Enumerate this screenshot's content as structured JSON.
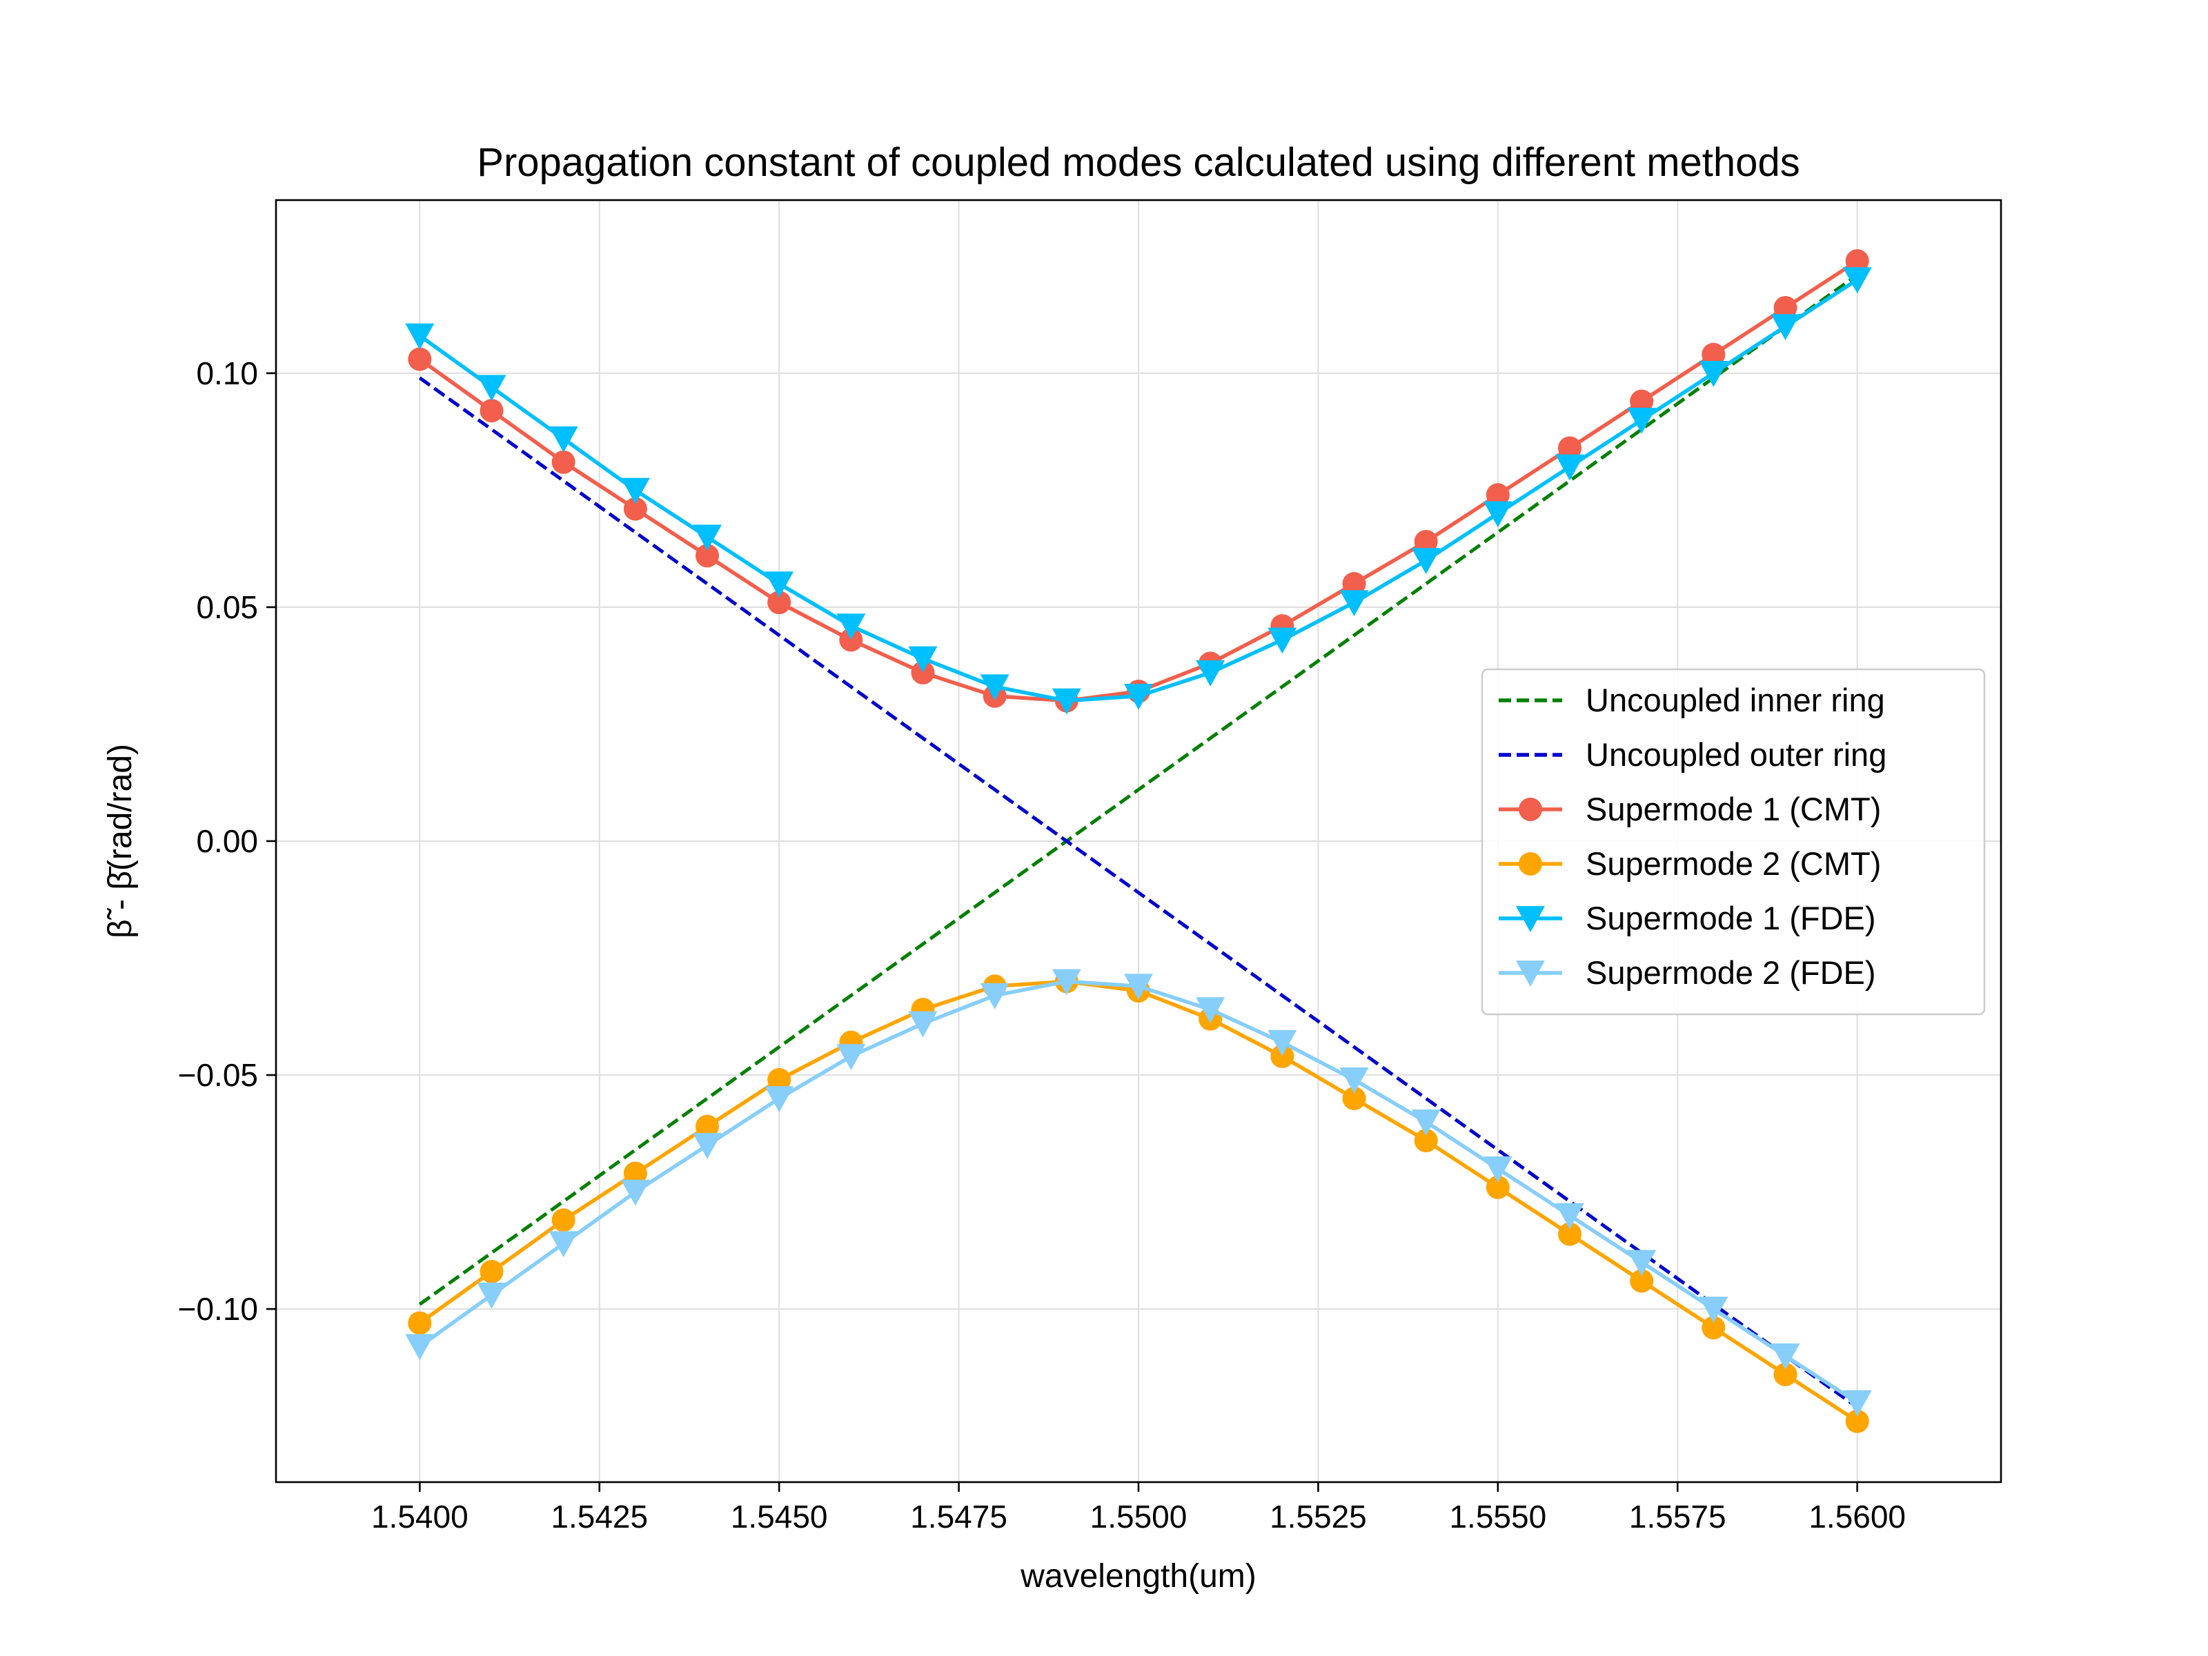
{
  "chart_data": {
    "type": "line",
    "title": "Propagation constant of coupled modes calculated using different methods",
    "xlabel": "wavelength(um)",
    "ylabel": "β̃ - β̄(rad/rad)",
    "xlim": [
      1.538,
      1.562
    ],
    "ylim": [
      -0.137,
      0.137
    ],
    "grid": true,
    "legend_position": "center-right",
    "x_ticks": [
      1.54,
      1.5425,
      1.545,
      1.5475,
      1.55,
      1.5525,
      1.555,
      1.5575,
      1.56
    ],
    "x_tick_labels": [
      "1.5400",
      "1.5425",
      "1.5450",
      "1.5475",
      "1.5500",
      "1.5525",
      "1.5550",
      "1.5575",
      "1.5600"
    ],
    "y_ticks": [
      -0.1,
      -0.05,
      0.0,
      0.05,
      0.1
    ],
    "y_tick_labels": [
      "−0.10",
      "−0.05",
      "0.00",
      "0.05",
      "0.10"
    ],
    "x": [
      1.54,
      1.541,
      1.542,
      1.543,
      1.544,
      1.545,
      1.546,
      1.547,
      1.548,
      1.549,
      1.55,
      1.551,
      1.552,
      1.553,
      1.554,
      1.555,
      1.556,
      1.557,
      1.558,
      1.559,
      1.56
    ],
    "series": [
      {
        "name": "Uncoupled inner ring",
        "color": "#008000",
        "style": "dashed",
        "marker": "none",
        "values": [
          -0.099,
          -0.088,
          -0.077,
          -0.066,
          -0.055,
          -0.044,
          -0.033,
          -0.022,
          -0.011,
          0.0,
          0.011,
          0.022,
          0.033,
          0.044,
          0.055,
          0.066,
          0.077,
          0.088,
          0.099,
          0.11,
          0.121
        ]
      },
      {
        "name": "Uncoupled outer ring",
        "color": "#0000cd",
        "style": "dashed",
        "marker": "none",
        "values": [
          0.099,
          0.088,
          0.077,
          0.066,
          0.055,
          0.044,
          0.033,
          0.022,
          0.011,
          0.0,
          -0.011,
          -0.022,
          -0.033,
          -0.044,
          -0.055,
          -0.066,
          -0.077,
          -0.088,
          -0.099,
          -0.11,
          -0.121
        ]
      },
      {
        "name": "Supermode 1 (CMT)",
        "color": "#f25f4c",
        "style": "solid",
        "marker": "circle",
        "values": [
          0.103,
          0.092,
          0.081,
          0.071,
          0.061,
          0.051,
          0.043,
          0.036,
          0.031,
          0.03,
          0.032,
          0.038,
          0.046,
          0.055,
          0.064,
          0.074,
          0.084,
          0.094,
          0.104,
          0.114,
          0.124
        ]
      },
      {
        "name": "Supermode 2 (CMT)",
        "color": "#ffa500",
        "style": "solid",
        "marker": "circle",
        "values": [
          -0.103,
          -0.092,
          -0.081,
          -0.071,
          -0.061,
          -0.051,
          -0.043,
          -0.036,
          -0.031,
          -0.03,
          -0.032,
          -0.038,
          -0.046,
          -0.055,
          -0.064,
          -0.074,
          -0.084,
          -0.094,
          -0.104,
          -0.114,
          -0.124
        ]
      },
      {
        "name": "Supermode 1 (FDE)",
        "color": "#00bfff",
        "style": "solid",
        "marker": "triangle-down",
        "values": [
          0.108,
          0.097,
          0.086,
          0.075,
          0.065,
          0.055,
          0.046,
          0.039,
          0.033,
          0.03,
          0.031,
          0.036,
          0.043,
          0.051,
          0.06,
          0.07,
          0.08,
          0.09,
          0.1,
          0.11,
          0.12
        ]
      },
      {
        "name": "Supermode 2 (FDE)",
        "color": "#87cefa",
        "style": "solid",
        "marker": "triangle-down",
        "values": [
          -0.108,
          -0.097,
          -0.086,
          -0.075,
          -0.065,
          -0.055,
          -0.046,
          -0.039,
          -0.033,
          -0.03,
          -0.031,
          -0.036,
          -0.043,
          -0.051,
          -0.06,
          -0.07,
          -0.08,
          -0.09,
          -0.1,
          -0.11,
          -0.12
        ]
      }
    ]
  }
}
